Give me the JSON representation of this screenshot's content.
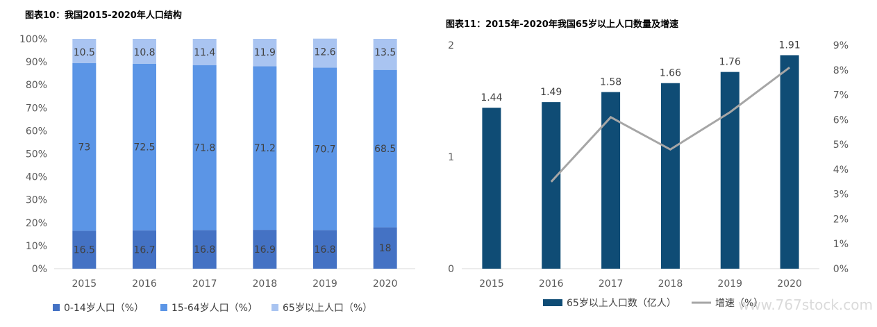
{
  "chart_data": [
    {
      "type": "bar",
      "stacked": true,
      "title": "图表10：我国2015-2020年人口结构",
      "categories": [
        "2015",
        "2016",
        "2017",
        "2018",
        "2019",
        "2020"
      ],
      "series": [
        {
          "name": "0-14岁人口（%）",
          "values": [
            16.5,
            16.7,
            16.8,
            16.9,
            16.8,
            18
          ],
          "color": "#4472c4"
        },
        {
          "name": "15-64岁人口（%）",
          "values": [
            73,
            72.5,
            71.8,
            71.2,
            70.7,
            68.5
          ],
          "color": "#5b95e6"
        },
        {
          "name": "65岁以上人口（%）",
          "values": [
            10.5,
            10.8,
            11.4,
            11.9,
            12.6,
            13.5
          ],
          "color": "#a9c4f1"
        }
      ],
      "y_ticks": [
        "0%",
        "10%",
        "20%",
        "30%",
        "40%",
        "50%",
        "60%",
        "70%",
        "80%",
        "90%",
        "100%"
      ],
      "ylim": [
        0,
        100
      ],
      "legend_position": "bottom",
      "grid": false
    },
    {
      "type": "bar",
      "title": "图表11：2015年-2020年我国65岁以上人口数量及增速",
      "categories": [
        "2015",
        "2016",
        "2017",
        "2018",
        "2019",
        "2020"
      ],
      "series": [
        {
          "name": "65岁以上人口数（亿人）",
          "type": "bar",
          "axis": "left",
          "values": [
            1.44,
            1.49,
            1.58,
            1.66,
            1.76,
            1.91
          ],
          "color": "#0f4c75"
        },
        {
          "name": "增速（%）",
          "type": "line",
          "axis": "right",
          "values": [
            null,
            3.5,
            6.1,
            4.8,
            6.3,
            8.1
          ],
          "color": "#a6a6a6"
        }
      ],
      "y_ticks": [
        "0",
        "1",
        "2"
      ],
      "ylim": [
        0,
        2
      ],
      "y2_ticks": [
        "0%",
        "1%",
        "2%",
        "3%",
        "4%",
        "5%",
        "6%",
        "7%",
        "8%",
        "9%"
      ],
      "y2lim": [
        0,
        9
      ],
      "legend_position": "bottom",
      "grid": false
    }
  ],
  "watermark": "www.767stock.com"
}
